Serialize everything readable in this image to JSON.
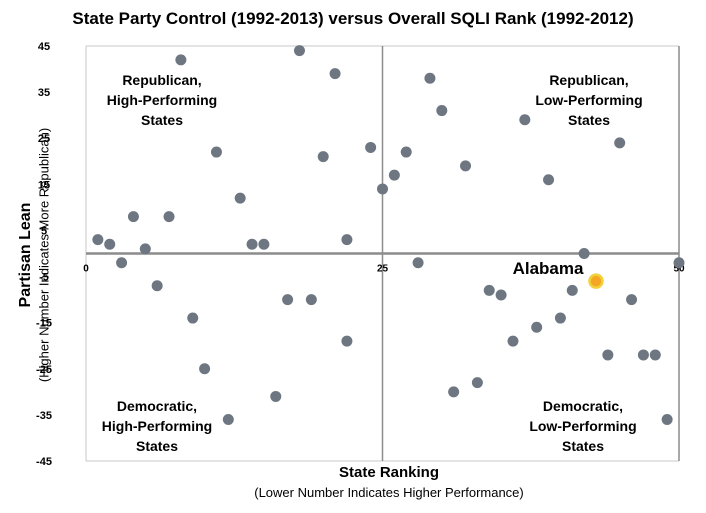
{
  "chart_data": {
    "type": "scatter",
    "title": "State Party Control (1992-2013) versus Overall SQLI Rank (1992-2012)",
    "xlabel": "State Ranking",
    "xlabel_sub": "(Lower Number Indicates Higher Performance)",
    "ylabel": "Partisan Lean",
    "ylabel_sub": "(Higher Number Indicates More Republican)",
    "xlim": [
      0,
      50
    ],
    "ylim": [
      -45,
      45
    ],
    "x_ticks": [
      "0",
      "25",
      "50"
    ],
    "y_ticks": [
      "45",
      "35",
      "25",
      "15",
      "5",
      "-5",
      "-15",
      "-25",
      "-35",
      "-45"
    ],
    "quadrant_labels": {
      "top_left": "Republican,\nHigh-Performing\nStates",
      "top_right": "Republican,\nLow-Performing\nStates",
      "bottom_left": "Democratic,\nHigh-Performing\nStates",
      "bottom_right": "Democratic,\nLow-Performing\nStates"
    },
    "highlight": {
      "label": "Alabama",
      "x": 43,
      "y": -6,
      "color": "#f5a623",
      "ring_color": "#f2d13a"
    },
    "point_color": "#6e7781",
    "points": [
      {
        "x": 1,
        "y": 3
      },
      {
        "x": 2,
        "y": 2
      },
      {
        "x": 3,
        "y": -2
      },
      {
        "x": 4,
        "y": 8
      },
      {
        "x": 5,
        "y": 1
      },
      {
        "x": 6,
        "y": -7
      },
      {
        "x": 7,
        "y": 8
      },
      {
        "x": 8,
        "y": 42
      },
      {
        "x": 9,
        "y": -14
      },
      {
        "x": 10,
        "y": -25
      },
      {
        "x": 11,
        "y": 22
      },
      {
        "x": 12,
        "y": -36
      },
      {
        "x": 13,
        "y": 12
      },
      {
        "x": 14,
        "y": 2
      },
      {
        "x": 15,
        "y": 2
      },
      {
        "x": 16,
        "y": -31
      },
      {
        "x": 17,
        "y": -10
      },
      {
        "x": 18,
        "y": 44
      },
      {
        "x": 19,
        "y": -10
      },
      {
        "x": 20,
        "y": 21
      },
      {
        "x": 21,
        "y": 39
      },
      {
        "x": 22,
        "y": 3
      },
      {
        "x": 22,
        "y": -19
      },
      {
        "x": 24,
        "y": 23
      },
      {
        "x": 25,
        "y": 14
      },
      {
        "x": 26,
        "y": 17
      },
      {
        "x": 27,
        "y": 22
      },
      {
        "x": 28,
        "y": -2
      },
      {
        "x": 29,
        "y": 38
      },
      {
        "x": 30,
        "y": 31
      },
      {
        "x": 31,
        "y": -30
      },
      {
        "x": 32,
        "y": 19
      },
      {
        "x": 33,
        "y": -28
      },
      {
        "x": 34,
        "y": -8
      },
      {
        "x": 35,
        "y": -9
      },
      {
        "x": 36,
        "y": -19
      },
      {
        "x": 37,
        "y": 29
      },
      {
        "x": 38,
        "y": -16
      },
      {
        "x": 39,
        "y": 16
      },
      {
        "x": 40,
        "y": -14
      },
      {
        "x": 41,
        "y": -8
      },
      {
        "x": 42,
        "y": 0
      },
      {
        "x": 44,
        "y": -22
      },
      {
        "x": 45,
        "y": 24
      },
      {
        "x": 46,
        "y": -10
      },
      {
        "x": 47,
        "y": -22
      },
      {
        "x": 48,
        "y": -22
      },
      {
        "x": 49,
        "y": -36
      },
      {
        "x": 50,
        "y": -2
      }
    ]
  }
}
